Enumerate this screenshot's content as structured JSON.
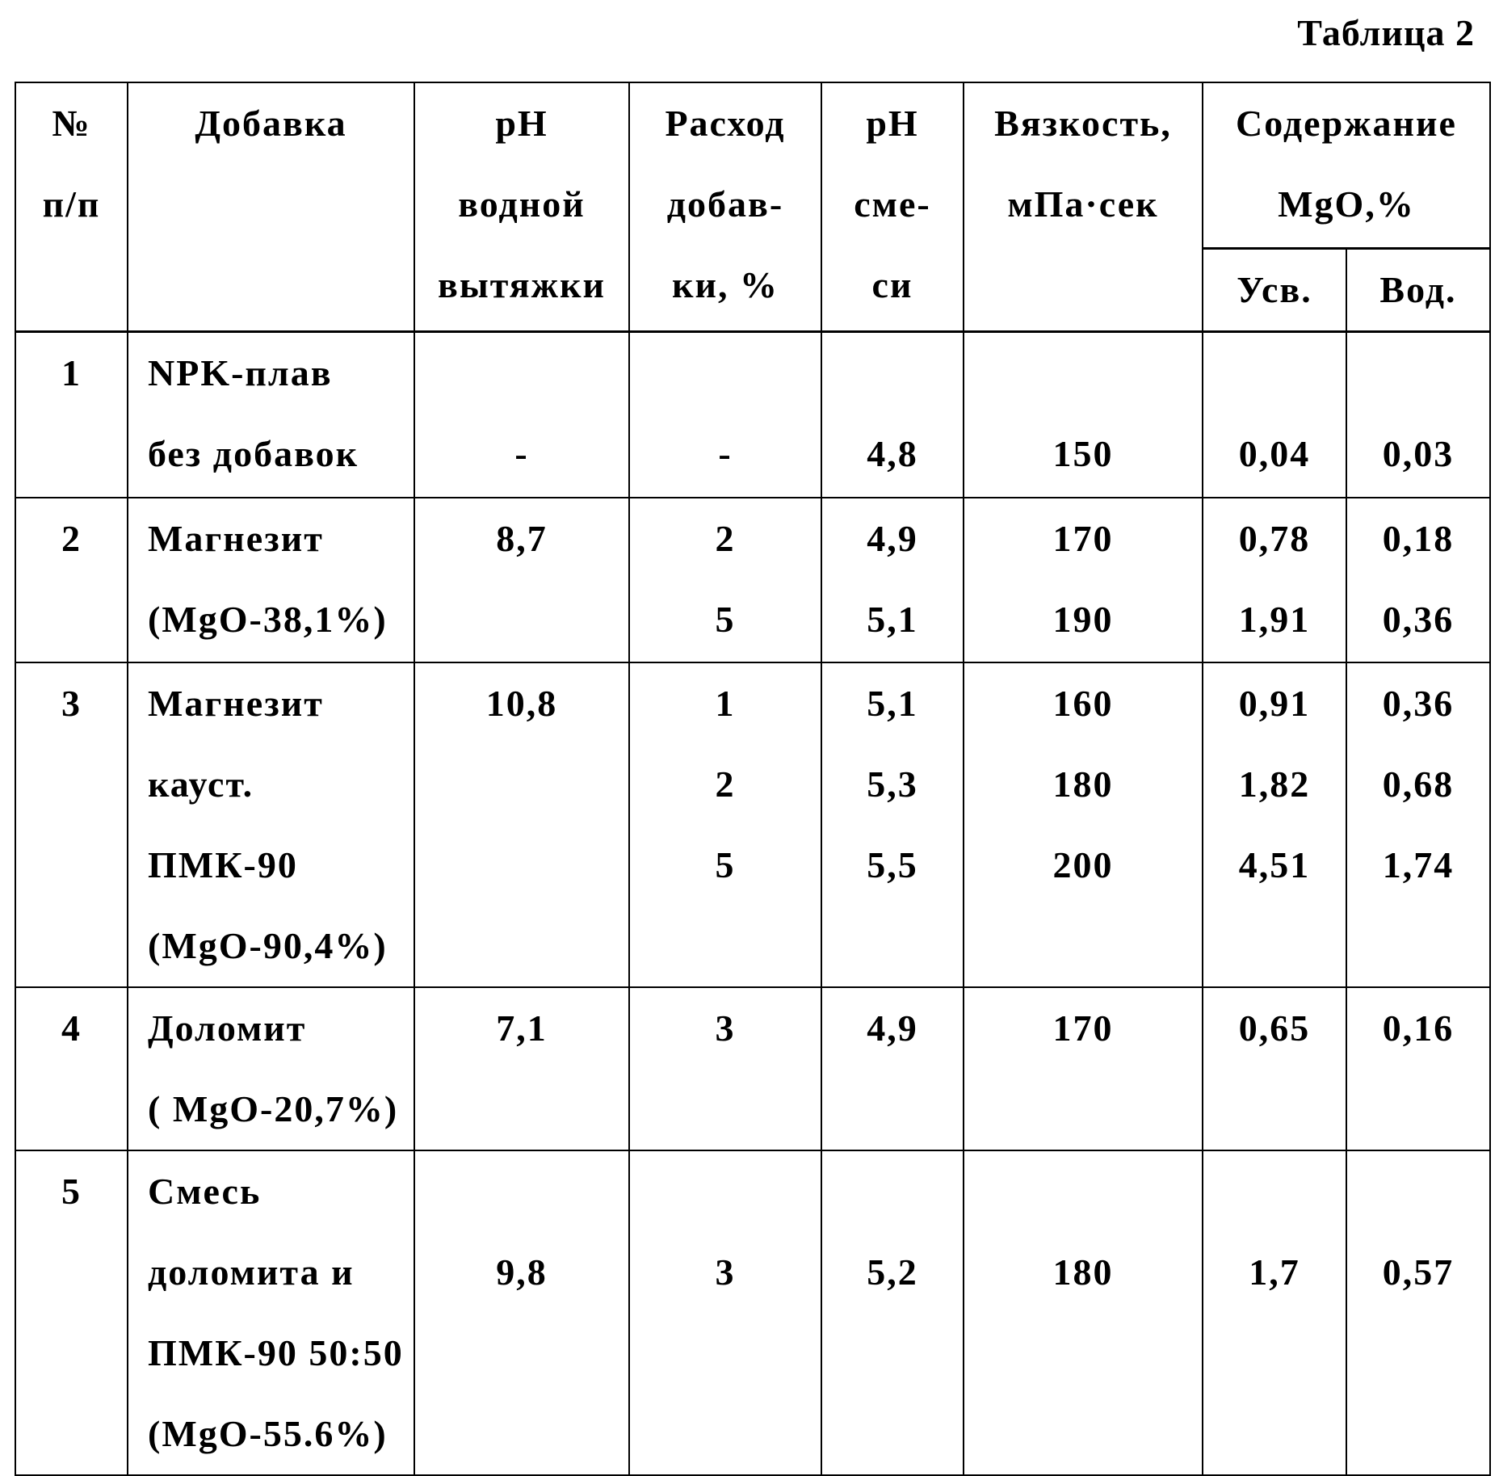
{
  "caption": "Таблица 2",
  "table": {
    "header": {
      "num": [
        "№",
        "п/п"
      ],
      "additive": [
        "Добавка"
      ],
      "ph_extract": [
        "pH",
        "водной",
        "вытяжки"
      ],
      "dosage": [
        "Расход",
        "добав-",
        "ки, %"
      ],
      "ph_mix": [
        "pH",
        "сме-",
        "си"
      ],
      "viscosity": [
        "Вязкость,",
        "мПа·сек"
      ],
      "mgo": [
        "Содержание",
        "MgO,%"
      ],
      "mgo_available": [
        "Усв."
      ],
      "mgo_water": [
        "Вод."
      ]
    },
    "rows": [
      [
        [
          "1"
        ],
        [
          "NPK-плав",
          "без добавок"
        ],
        [
          null,
          "-"
        ],
        [
          null,
          "-"
        ],
        [
          null,
          "4,8"
        ],
        [
          null,
          "150"
        ],
        [
          null,
          "0,04"
        ],
        [
          null,
          "0,03"
        ]
      ],
      [
        [
          "2"
        ],
        [
          "Магнезит",
          "(MgO-38,1%)"
        ],
        [
          "8,7"
        ],
        [
          "2",
          "5"
        ],
        [
          "4,9",
          "5,1"
        ],
        [
          "170",
          "190"
        ],
        [
          "0,78",
          "1,91"
        ],
        [
          "0,18",
          "0,36"
        ]
      ],
      [
        [
          "3"
        ],
        [
          "Магнезит",
          "кауст.",
          "ПМК-90",
          "(MgO-90,4%)"
        ],
        [
          "10,8"
        ],
        [
          "1",
          "2",
          "5"
        ],
        [
          "5,1",
          "5,3",
          "5,5"
        ],
        [
          "160",
          "180",
          "200"
        ],
        [
          "0,91",
          "1,82",
          "4,51"
        ],
        [
          "0,36",
          "0,68",
          "1,74"
        ]
      ],
      [
        [
          "4"
        ],
        [
          "Доломит",
          "( MgO-20,7%)"
        ],
        [
          "7,1"
        ],
        [
          "3"
        ],
        [
          "4,9"
        ],
        [
          "170"
        ],
        [
          "0,65"
        ],
        [
          "0,16"
        ]
      ],
      [
        [
          "5"
        ],
        [
          "Смесь",
          "доломита и",
          "ПМК-90 50:50",
          "(MgO-55.6%)"
        ],
        [
          null,
          "9,8"
        ],
        [
          null,
          "3"
        ],
        [
          null,
          "5,2"
        ],
        [
          null,
          "180"
        ],
        [
          null,
          "1,7"
        ],
        [
          null,
          "0,57"
        ]
      ]
    ]
  }
}
